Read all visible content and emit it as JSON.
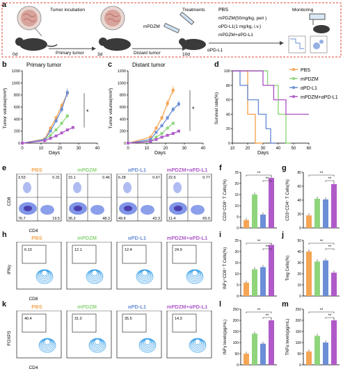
{
  "panel_a": {
    "label": "a",
    "tumor_incubation": "Tumor incubation",
    "day0": "0d",
    "primary_tumor": "Primary tumor",
    "day3": "3d",
    "distant_tumor": "Distant tumor",
    "mpdzm": "mPDZM",
    "day10": "10d",
    "treatments": "Treatments",
    "apdl1": "αPD-L1",
    "regimens": [
      "PBS",
      "mPDZM(50mg/kg, peri )",
      "αPD-L1(1 mg/kg, i.v.)",
      "mPDZM+αPD-L1"
    ],
    "monitoring": "Monitoring"
  },
  "colors": {
    "pbs": "#F5A553",
    "mpdzm": "#8ED57C",
    "apdl1": "#6B8ED6",
    "combo": "#B05AC9",
    "border": "#E0453A"
  },
  "panel_b": {
    "label": "b",
    "title": "Primary tumor",
    "ylabel": "Tumor volume(mm³)",
    "xlabel": "Days",
    "yticks": [
      "0",
      "200",
      "400",
      "600",
      "800",
      "1000",
      "1200"
    ],
    "xticks": [
      "0",
      "10",
      "20",
      "30",
      "40"
    ],
    "sig": "*"
  },
  "panel_c": {
    "label": "c",
    "title": "Distant tumor",
    "ylabel": "Tumor volume(mm³)",
    "xlabel": "Days",
    "yticks": [
      "0",
      "200",
      "400",
      "600",
      "800",
      "1000",
      "1200"
    ],
    "xticks": [
      "0",
      "10",
      "20",
      "30",
      "40"
    ],
    "sig": "*"
  },
  "panel_d": {
    "label": "d",
    "ylabel": "Survival rate(%)",
    "xlabel": "Days",
    "yticks": [
      "0",
      "20",
      "40",
      "60",
      "80",
      "100"
    ],
    "xticks": [
      "10",
      "20",
      "30",
      "40",
      "50",
      "60"
    ],
    "legend": [
      "PBS",
      "mPDZM",
      "αPD-L1",
      "mPDZM+αPD-L1"
    ]
  },
  "chart_data": [
    {
      "type": "line",
      "title": "Primary tumor",
      "xlabel": "Days",
      "ylabel": "Tumor volume(mm³)",
      "ylim": [
        0,
        1200
      ],
      "xlim": [
        0,
        40
      ],
      "x": [
        0,
        12,
        15,
        18,
        21,
        24,
        27
      ],
      "series": [
        {
          "name": "PBS",
          "values": [
            0,
            70,
            250,
            420,
            620,
            830,
            null
          ]
        },
        {
          "name": "mPDZM",
          "values": [
            0,
            50,
            130,
            220,
            330,
            450,
            null
          ]
        },
        {
          "name": "αPD-L1",
          "values": [
            0,
            60,
            200,
            370,
            560,
            840,
            null
          ]
        },
        {
          "name": "mPDZM+αPD-L1",
          "values": [
            0,
            40,
            80,
            120,
            170,
            220,
            260
          ]
        }
      ]
    },
    {
      "type": "line",
      "title": "Distant tumor",
      "xlabel": "Days",
      "ylabel": "Tumor volume(mm³)",
      "ylim": [
        0,
        1200
      ],
      "xlim": [
        0,
        40
      ],
      "x": [
        0,
        12,
        15,
        18,
        21,
        24,
        27
      ],
      "series": [
        {
          "name": "PBS",
          "values": [
            0,
            100,
            250,
            420,
            660,
            880,
            null
          ]
        },
        {
          "name": "mPDZM",
          "values": [
            0,
            40,
            100,
            160,
            250,
            330,
            null
          ]
        },
        {
          "name": "αPD-L1",
          "values": [
            0,
            60,
            180,
            290,
            420,
            560,
            650
          ]
        },
        {
          "name": "mPDZM+αPD-L1",
          "values": [
            0,
            30,
            60,
            100,
            130,
            160,
            200
          ]
        }
      ]
    },
    {
      "type": "line",
      "title": "",
      "xlabel": "Days",
      "ylabel": "Survival rate(%)",
      "ylim": [
        0,
        100
      ],
      "xlim": [
        10,
        60
      ],
      "series": [
        {
          "name": "PBS",
          "x": [
            10,
            20,
            20,
            25,
            25,
            30
          ],
          "values": [
            100,
            100,
            40,
            40,
            0,
            0
          ]
        },
        {
          "name": "mPDZM",
          "x": [
            10,
            33,
            33,
            40,
            40,
            45,
            45,
            48
          ],
          "values": [
            100,
            100,
            80,
            80,
            40,
            40,
            0,
            0
          ]
        },
        {
          "name": "αPD-L1",
          "x": [
            10,
            15,
            15,
            20,
            20,
            27,
            27,
            32,
            32,
            35,
            35,
            38
          ],
          "values": [
            100,
            100,
            80,
            80,
            60,
            60,
            40,
            40,
            20,
            20,
            0,
            0
          ]
        },
        {
          "name": "mPDZM+αPD-L1",
          "x": [
            10,
            30,
            30,
            37,
            37,
            45,
            45,
            60
          ],
          "values": [
            100,
            100,
            80,
            80,
            60,
            60,
            40,
            40
          ]
        }
      ]
    },
    {
      "type": "bar",
      "title": "",
      "ylabel": "CD3⁺CD8⁺ T Cells(%)",
      "ylim": [
        0,
        25
      ],
      "yticks": [
        "0",
        "5",
        "10",
        "15",
        "20",
        "25"
      ],
      "categories": [
        "PBS",
        "mPDZM",
        "αPD-L1",
        "mPDZM+αPD-L1"
      ],
      "values": [
        3.5,
        15,
        6,
        22.5
      ],
      "sig": [
        "**",
        "**"
      ]
    },
    {
      "type": "bar",
      "title": "",
      "ylabel": "CD3⁺CD4⁺ T Cells(%)",
      "ylim": [
        0,
        80
      ],
      "yticks": [
        "0",
        "20",
        "40",
        "60",
        "80"
      ],
      "categories": [
        "PBS",
        "mPDZM",
        "αPD-L1",
        "mPDZM+αPD-L1"
      ],
      "values": [
        18,
        42,
        41,
        63
      ],
      "sig": [
        "**",
        "**"
      ]
    },
    {
      "type": "bar",
      "title": "",
      "ylabel": "INFγ⁺CD8⁺ T Cells(%)",
      "ylim": [
        0,
        25
      ],
      "yticks": [
        "0",
        "5",
        "10",
        "15",
        "20",
        "25"
      ],
      "categories": [
        "PBS",
        "mPDZM",
        "αPD-L1",
        "mPDZM+αPD-L1"
      ],
      "values": [
        6,
        12,
        13,
        23
      ],
      "sig": [
        "**",
        "**"
      ]
    },
    {
      "type": "bar",
      "title": "",
      "ylabel": "Treg Cells(%)",
      "ylim": [
        0,
        50
      ],
      "yticks": [
        "0",
        "10",
        "20",
        "30",
        "40",
        "50"
      ],
      "categories": [
        "PBS",
        "mPDZM",
        "αPD-L1",
        "mPDZM+αPD-L1"
      ],
      "values": [
        40,
        31,
        32,
        21
      ],
      "sig": [
        "**",
        "**"
      ]
    },
    {
      "type": "bar",
      "title": "",
      "ylabel": "INFγ levels(pg/mL)",
      "ylim": [
        0,
        250
      ],
      "yticks": [
        "0",
        "50",
        "100",
        "150",
        "200",
        "250"
      ],
      "categories": [
        "PBS",
        "mPDZM",
        "αPD-L1",
        "mPDZM+αPD-L1"
      ],
      "values": [
        50,
        140,
        95,
        200
      ],
      "sig": [
        "**",
        "**"
      ]
    },
    {
      "type": "bar",
      "title": "",
      "ylabel": "TNFα levels(pg/mL)",
      "ylim": [
        0,
        250
      ],
      "yticks": [
        "0",
        "50",
        "100",
        "150",
        "200",
        "250"
      ],
      "categories": [
        "PBS",
        "mPDZM",
        "αPD-L1",
        "mPDZM+αPD-L1"
      ],
      "values": [
        60,
        130,
        100,
        200
      ],
      "sig": [
        "**",
        "**"
      ]
    }
  ],
  "panel_labels": {
    "e": "e",
    "f": "f",
    "g": "g",
    "h": "h",
    "i": "i",
    "j": "j",
    "k": "k",
    "l": "l",
    "m": "m"
  },
  "flow_e": {
    "titles": [
      "PBS",
      "mPDZM",
      "αPD-L1",
      "mPDZM+αPD-L1"
    ],
    "ylabel": "CD8",
    "xlabel": "CD4",
    "quadrants": [
      [
        "3.53",
        "0.31",
        "76.7",
        "19.5"
      ],
      [
        "15.1",
        "0.46",
        "36.2",
        "48.3"
      ],
      [
        "6.28",
        "0.67",
        "49.6",
        "43.3"
      ],
      [
        "22.6",
        "0.77",
        "11.4",
        "65.0"
      ]
    ]
  },
  "flow_h": {
    "titles": [
      "PBS",
      "mPDZM",
      "αPD-L1",
      "mPDZM+αPD-L1"
    ],
    "ylabel": "IFNγ",
    "xlabel": "CD8",
    "gates": [
      "6.13",
      "12.1",
      "12.4",
      "24.9"
    ]
  },
  "flow_k": {
    "titles": [
      "PBS",
      "mPDZM",
      "αPD-L1",
      "mPDZM+αPD-L1"
    ],
    "ylabel": "FOXP3",
    "xlabel": "CD4",
    "gates": [
      "40.4",
      "31.0",
      "35.5",
      "14.3"
    ]
  }
}
